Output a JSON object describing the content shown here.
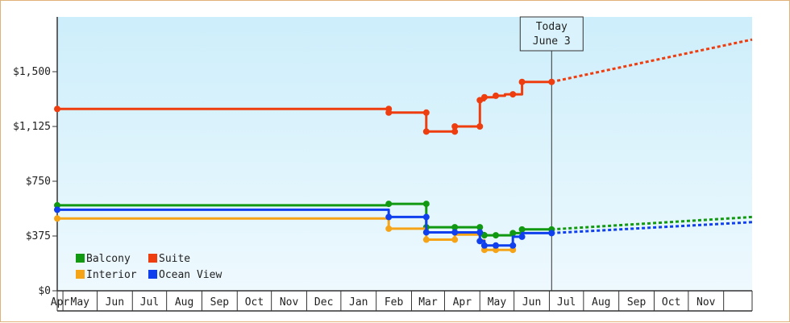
{
  "chart_data": {
    "type": "line",
    "step": true,
    "x_unit": "month",
    "xlim": [
      "2023-03-27",
      "2024-11-26"
    ],
    "ylim": [
      0,
      1875
    ],
    "y_ticks": [
      {
        "v": 0,
        "label": "$0"
      },
      {
        "v": 375,
        "label": "$375"
      },
      {
        "v": 750,
        "label": "$750"
      },
      {
        "v": 1125,
        "label": "$1,125"
      },
      {
        "v": 1500,
        "label": "$1,500"
      }
    ],
    "x_ticks": [
      "Apr",
      "May",
      "Jun",
      "Jul",
      "Aug",
      "Sep",
      "Oct",
      "Nov",
      "Dec",
      "Jan",
      "Feb",
      "Mar",
      "Apr",
      "May",
      "Jun",
      "Jul",
      "Aug",
      "Sep",
      "Oct",
      "Nov"
    ],
    "background_gradient": [
      "#cdeefb",
      "#eef9fe"
    ],
    "today": {
      "line1": "Today",
      "line2": "June 3",
      "date": "2024-06-03"
    },
    "legend": {
      "placement": "bottom-left"
    },
    "series": [
      {
        "name": "Balcony",
        "color": "#119911",
        "points": [
          [
            "2023-03-27",
            585
          ],
          [
            "2024-01-12",
            585
          ],
          [
            "2024-01-12",
            595
          ],
          [
            "2024-02-14",
            595
          ],
          [
            "2024-02-14",
            435
          ],
          [
            "2024-03-10",
            435
          ],
          [
            "2024-03-10",
            435
          ],
          [
            "2024-04-01",
            435
          ],
          [
            "2024-04-01",
            395
          ],
          [
            "2024-04-05",
            395
          ],
          [
            "2024-04-05",
            380
          ],
          [
            "2024-04-15",
            380
          ],
          [
            "2024-04-15",
            380
          ],
          [
            "2024-04-30",
            380
          ],
          [
            "2024-04-30",
            395
          ],
          [
            "2024-05-08",
            395
          ],
          [
            "2024-05-08",
            420
          ],
          [
            "2024-06-03",
            420
          ]
        ],
        "markers": [
          [
            "2023-03-27",
            585
          ],
          [
            "2024-01-12",
            595
          ],
          [
            "2024-02-14",
            595
          ],
          [
            "2024-02-14",
            435
          ],
          [
            "2024-03-10",
            435
          ],
          [
            "2024-04-01",
            435
          ],
          [
            "2024-04-01",
            395
          ],
          [
            "2024-04-05",
            380
          ],
          [
            "2024-04-15",
            380
          ],
          [
            "2024-04-30",
            395
          ],
          [
            "2024-05-08",
            420
          ],
          [
            "2024-06-03",
            420
          ]
        ],
        "forecast": [
          [
            "2024-06-03",
            420
          ],
          [
            "2024-11-26",
            505
          ]
        ]
      },
      {
        "name": "Suite",
        "color": "#ee3d0f",
        "points": [
          [
            "2023-03-27",
            1245
          ],
          [
            "2024-01-12",
            1245
          ],
          [
            "2024-01-12",
            1220
          ],
          [
            "2024-02-14",
            1220
          ],
          [
            "2024-02-14",
            1090
          ],
          [
            "2024-03-10",
            1090
          ],
          [
            "2024-03-10",
            1125
          ],
          [
            "2024-04-01",
            1125
          ],
          [
            "2024-04-01",
            1305
          ],
          [
            "2024-04-05",
            1305
          ],
          [
            "2024-04-05",
            1325
          ],
          [
            "2024-04-15",
            1325
          ],
          [
            "2024-04-15",
            1335
          ],
          [
            "2024-04-23",
            1335
          ],
          [
            "2024-04-23",
            1345
          ],
          [
            "2024-05-08",
            1345
          ],
          [
            "2024-05-08",
            1430
          ],
          [
            "2024-06-03",
            1430
          ]
        ],
        "markers": [
          [
            "2023-03-27",
            1245
          ],
          [
            "2024-01-12",
            1245
          ],
          [
            "2024-01-12",
            1220
          ],
          [
            "2024-02-14",
            1220
          ],
          [
            "2024-02-14",
            1090
          ],
          [
            "2024-03-10",
            1090
          ],
          [
            "2024-03-10",
            1125
          ],
          [
            "2024-04-01",
            1125
          ],
          [
            "2024-04-01",
            1305
          ],
          [
            "2024-04-05",
            1325
          ],
          [
            "2024-04-15",
            1335
          ],
          [
            "2024-04-30",
            1345
          ],
          [
            "2024-05-08",
            1430
          ],
          [
            "2024-06-03",
            1430
          ]
        ],
        "forecast": [
          [
            "2024-06-03",
            1430
          ],
          [
            "2024-11-26",
            1720
          ]
        ]
      },
      {
        "name": "Interior",
        "color": "#f5a418",
        "points": [
          [
            "2023-03-27",
            495
          ],
          [
            "2024-01-12",
            495
          ],
          [
            "2024-01-12",
            425
          ],
          [
            "2024-02-14",
            425
          ],
          [
            "2024-02-14",
            350
          ],
          [
            "2024-03-10",
            350
          ],
          [
            "2024-03-10",
            385
          ],
          [
            "2024-04-01",
            385
          ],
          [
            "2024-04-01",
            345
          ],
          [
            "2024-04-05",
            345
          ],
          [
            "2024-04-05",
            280
          ],
          [
            "2024-04-30",
            280
          ]
        ],
        "markers": [
          [
            "2023-03-27",
            495
          ],
          [
            "2024-01-12",
            425
          ],
          [
            "2024-02-14",
            350
          ],
          [
            "2024-03-10",
            350
          ],
          [
            "2024-04-05",
            280
          ],
          [
            "2024-04-15",
            280
          ],
          [
            "2024-04-30",
            280
          ]
        ],
        "forecast": []
      },
      {
        "name": "Ocean View",
        "color": "#1040ee",
        "points": [
          [
            "2023-03-27",
            555
          ],
          [
            "2024-01-12",
            555
          ],
          [
            "2024-01-12",
            505
          ],
          [
            "2024-02-14",
            505
          ],
          [
            "2024-02-14",
            400
          ],
          [
            "2024-03-10",
            400
          ],
          [
            "2024-03-10",
            400
          ],
          [
            "2024-04-01",
            400
          ],
          [
            "2024-04-01",
            340
          ],
          [
            "2024-04-05",
            340
          ],
          [
            "2024-04-05",
            310
          ],
          [
            "2024-04-30",
            310
          ],
          [
            "2024-04-30",
            370
          ],
          [
            "2024-05-08",
            370
          ],
          [
            "2024-05-08",
            395
          ],
          [
            "2024-06-03",
            395
          ]
        ],
        "markers": [
          [
            "2023-03-27",
            555
          ],
          [
            "2024-01-12",
            505
          ],
          [
            "2024-02-14",
            505
          ],
          [
            "2024-02-14",
            400
          ],
          [
            "2024-03-10",
            400
          ],
          [
            "2024-04-01",
            400
          ],
          [
            "2024-04-01",
            340
          ],
          [
            "2024-04-05",
            310
          ],
          [
            "2024-04-15",
            310
          ],
          [
            "2024-04-30",
            310
          ],
          [
            "2024-05-08",
            370
          ],
          [
            "2024-06-03",
            395
          ]
        ],
        "forecast": [
          [
            "2024-06-03",
            395
          ],
          [
            "2024-11-26",
            470
          ]
        ]
      }
    ]
  }
}
